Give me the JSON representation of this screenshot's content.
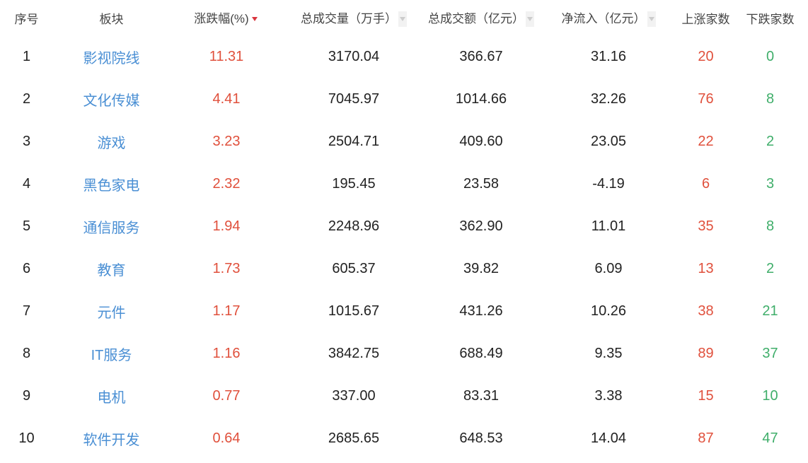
{
  "colors": {
    "up": "#e0503c",
    "down": "#3fae6a",
    "link": "#4a8fd4"
  },
  "headers": [
    "序号",
    "板块",
    "涨跌幅(%)",
    "总成交量（万手）",
    "总成交额（亿元）",
    "净流入（亿元）",
    "上涨家数",
    "下跌家数"
  ],
  "sort": {
    "active_column": "涨跌幅(%)",
    "direction": "desc"
  },
  "rows": [
    [
      "1",
      "影视院线",
      "11.31",
      "3170.04",
      "366.67",
      "31.16",
      "20",
      "0"
    ],
    [
      "2",
      "文化传媒",
      "4.41",
      "7045.97",
      "1014.66",
      "32.26",
      "76",
      "8"
    ],
    [
      "3",
      "游戏",
      "3.23",
      "2504.71",
      "409.60",
      "23.05",
      "22",
      "2"
    ],
    [
      "4",
      "黑色家电",
      "2.32",
      "195.45",
      "23.58",
      "-4.19",
      "6",
      "3"
    ],
    [
      "5",
      "通信服务",
      "1.94",
      "2248.96",
      "362.90",
      "11.01",
      "35",
      "8"
    ],
    [
      "6",
      "教育",
      "1.73",
      "605.37",
      "39.82",
      "6.09",
      "13",
      "2"
    ],
    [
      "7",
      "元件",
      "1.17",
      "1015.67",
      "431.26",
      "10.26",
      "38",
      "21"
    ],
    [
      "8",
      "IT服务",
      "1.16",
      "3842.75",
      "688.49",
      "9.35",
      "89",
      "37"
    ],
    [
      "9",
      "电机",
      "0.77",
      "337.00",
      "83.31",
      "3.38",
      "15",
      "10"
    ],
    [
      "10",
      "软件开发",
      "0.64",
      "2685.65",
      "648.53",
      "14.04",
      "87",
      "47"
    ]
  ]
}
